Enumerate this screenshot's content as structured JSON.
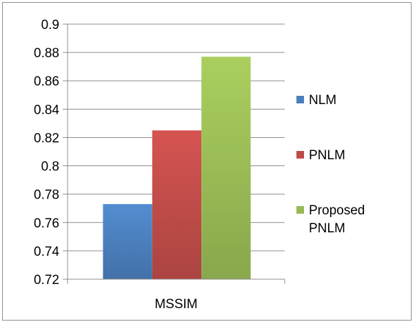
{
  "chart_data": {
    "type": "bar",
    "categories": [
      "MSSIM"
    ],
    "series": [
      {
        "name": "NLM",
        "values": [
          0.773
        ],
        "color": "#4a7ebb"
      },
      {
        "name": "PNLM",
        "values": [
          0.825
        ],
        "color": "#be4b48"
      },
      {
        "name": "Proposed PNLM",
        "values": [
          0.877
        ],
        "color": "#98b954"
      }
    ],
    "title": "",
    "xlabel": "",
    "ylabel": "",
    "ylim": [
      0.72,
      0.9
    ],
    "yticks": [
      "0.72",
      "0.74",
      "0.76",
      "0.78",
      "0.8",
      "0.82",
      "0.84",
      "0.86",
      "0.88",
      "0.9"
    ],
    "grid": true,
    "legend_position": "right"
  }
}
